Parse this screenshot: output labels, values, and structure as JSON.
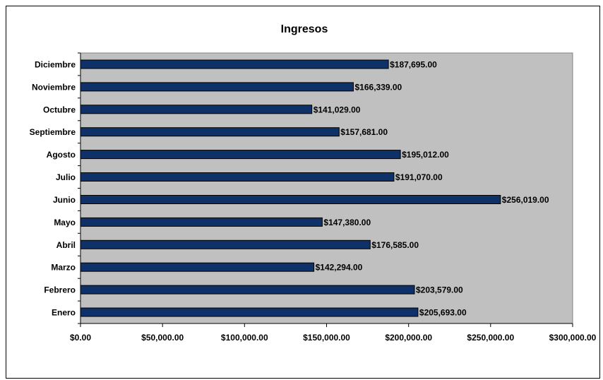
{
  "chart_data": {
    "type": "bar",
    "orientation": "horizontal",
    "title": "Ingresos",
    "xlabel": "",
    "ylabel": "",
    "categories": [
      "Enero",
      "Febrero",
      "Marzo",
      "Abril",
      "Mayo",
      "Junio",
      "Julio",
      "Agosto",
      "Septiembre",
      "Octubre",
      "Noviembre",
      "Diciembre"
    ],
    "values": [
      205693,
      203579,
      142294,
      176585,
      147380,
      256019,
      191070,
      195012,
      157681,
      141029,
      166339,
      187695
    ],
    "data_labels": [
      "$205,693.00",
      "$203,579.00",
      "$142,294.00",
      "$176,585.00",
      "$147,380.00",
      "$256,019.00",
      "$191,070.00",
      "$195,012.00",
      "$157,681.00",
      "$141,029.00",
      "$166,339.00",
      "$187,695.00"
    ],
    "xlim": [
      0,
      300000
    ],
    "x_ticks": [
      0,
      50000,
      100000,
      150000,
      200000,
      250000,
      300000
    ],
    "x_tick_labels": [
      "$0.00",
      "$50,000.00",
      "$100,000.00",
      "$150,000.00",
      "$200,000.00",
      "$250,000.00",
      "$300,000.00"
    ],
    "grid": false,
    "legend": "none",
    "colors": {
      "bar": "#0d3168",
      "plot_background": "#c0c0c0",
      "axis": "#000000"
    }
  }
}
